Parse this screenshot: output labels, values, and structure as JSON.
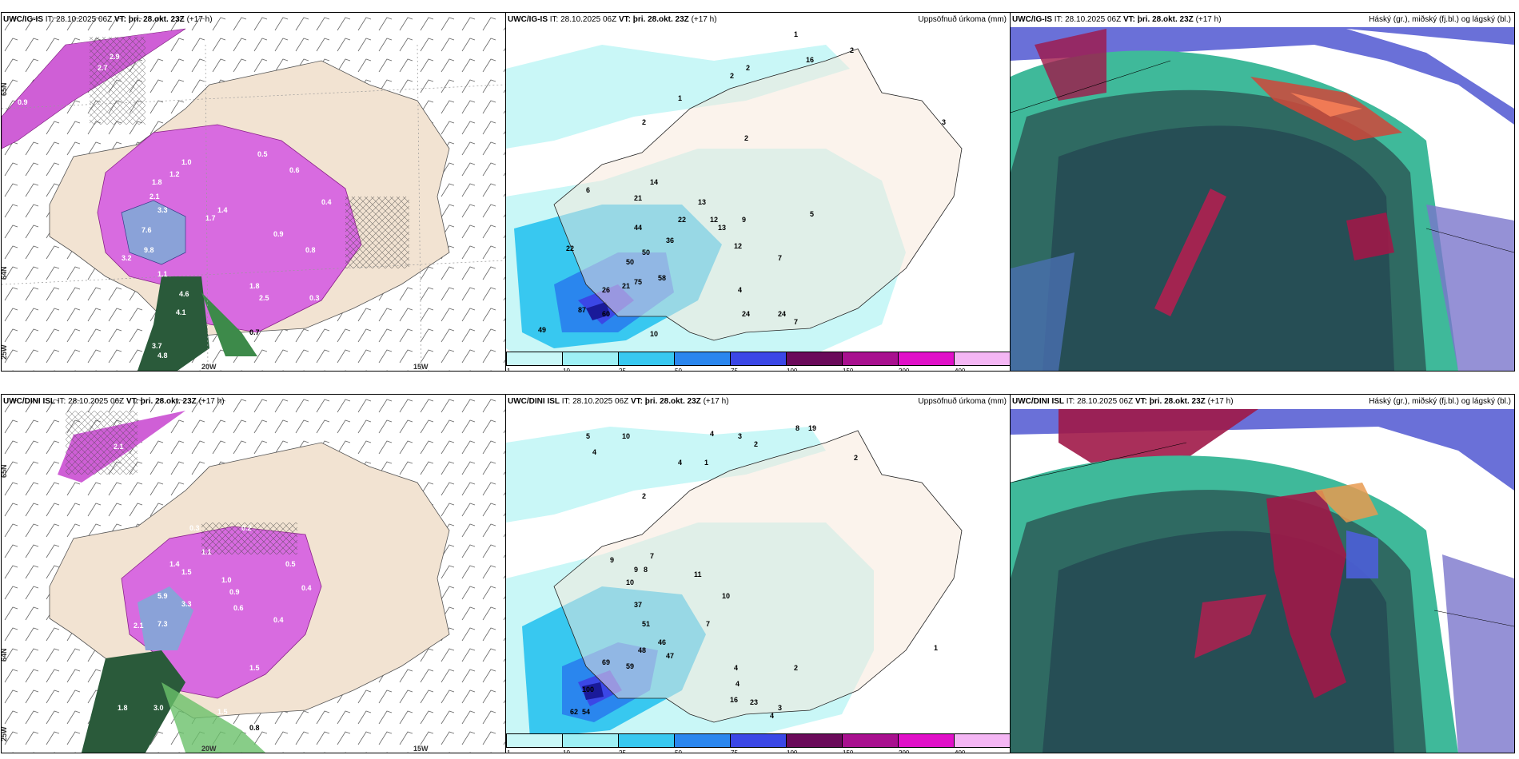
{
  "panels": {
    "top_left": {
      "source": "UWC/IG-IS",
      "it_label": "IT:",
      "it_value": "28.10.2025 06Z",
      "vt_label": "VT:",
      "vt_value": "þri. 28.okt. 23Z",
      "lead": "(+17 h)"
    },
    "top_mid": {
      "source": "UWC/IG-IS",
      "it_label": "IT:",
      "it_value": "28.10.2025 06Z",
      "vt_label": "VT:",
      "vt_value": "þri. 28.okt. 23Z",
      "lead": "(+17 h)",
      "right_title": "Uppsöfnuð úrkoma (mm)"
    },
    "top_right": {
      "source": "UWC/IG-IS",
      "it_label": "IT:",
      "it_value": "28.10.2025 06Z",
      "vt_label": "VT:",
      "vt_value": "þri. 28.okt. 23Z",
      "lead": "(+17 h)",
      "right_title": "Háský (gr.), miðský (fj.bl.) og lágský (bl.)"
    },
    "bottom_left": {
      "source": "UWC/DINI ISL",
      "it_label": "IT:",
      "it_value": "28.10.2025 06Z",
      "vt_label": "VT:",
      "vt_value": "þri. 28.okt. 23Z",
      "lead": "(+17 h)"
    },
    "bottom_mid": {
      "source": "UWC/DINI ISL",
      "it_label": "IT:",
      "it_value": "28.10.2025 06Z",
      "vt_label": "VT:",
      "vt_value": "þri. 28.okt. 23Z",
      "lead": "(+17 h)",
      "right_title": "Uppsöfnuð úrkoma (mm)"
    },
    "bottom_right": {
      "source": "UWC/DINI ISL",
      "it_label": "IT:",
      "it_value": "28.10.2025 06Z",
      "vt_label": "VT:",
      "vt_value": "þri. 28.okt. 23Z",
      "lead": "(+17 h)",
      "right_title": "Háský (gr.), miðský (fj.bl.) og lágský (bl.)"
    }
  },
  "grid_labels": {
    "lat65": "65N",
    "lat64": "64N",
    "lon25": "25W",
    "lon20": "20W",
    "lon15": "15W"
  },
  "legend": {
    "ticks": [
      "1",
      "10",
      "25",
      "50",
      "75",
      "100",
      "150",
      "200",
      "400"
    ],
    "colors": [
      "#c9f7f7",
      "#9ef0f5",
      "#38c8f0",
      "#2a86ee",
      "#3b47e6",
      "#6a0a5a",
      "#a8108f",
      "#e010c8",
      "#f4b6f4"
    ]
  },
  "top_left_labels": [
    "2.9",
    "2.7",
    "0.9",
    "1.8",
    "2.1",
    "3.3",
    "7.6",
    "9.8",
    "3.2",
    "1.1",
    "4.6",
    "4.1",
    "3.7",
    "4.8",
    "0.7",
    "2.5",
    "1.8",
    "1.4",
    "0.9",
    "0.8",
    "0.4",
    "0.5",
    "0.6",
    "1.2",
    "1.0",
    "1.7",
    "0.3"
  ],
  "top_mid_labels": [
    "1",
    "2",
    "2",
    "16",
    "2",
    "3",
    "2",
    "1",
    "2",
    "14",
    "21",
    "13",
    "22",
    "12",
    "13",
    "9",
    "36",
    "50",
    "44",
    "22",
    "12",
    "50",
    "58",
    "75",
    "26",
    "21",
    "87",
    "60",
    "49",
    "10",
    "6",
    "7",
    "4",
    "24",
    "24",
    "7",
    "5"
  ],
  "bottom_left_labels": [
    "2.1",
    "1.4",
    "0.3",
    "0.5",
    "0.2",
    "1.1",
    "1.5",
    "5.9",
    "3.3",
    "7.3",
    "2.1",
    "0.4",
    "1.5",
    "1.8",
    "3.0",
    "1.5",
    "0.9",
    "0.6",
    "0.8",
    "0.4",
    "1.0"
  ],
  "bottom_mid_labels": [
    "5",
    "10",
    "4",
    "4",
    "3",
    "8",
    "19",
    "2",
    "2",
    "4",
    "1",
    "2",
    "9",
    "7",
    "9",
    "8",
    "10",
    "11",
    "37",
    "51",
    "46",
    "48",
    "47",
    "69",
    "59",
    "100",
    "62",
    "54",
    "4",
    "4",
    "16",
    "23",
    "3",
    "4",
    "7",
    "10",
    "2",
    "1"
  ]
}
